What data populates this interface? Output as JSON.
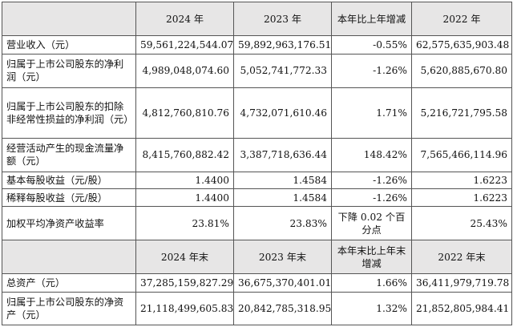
{
  "header": {
    "c2024": "2024 年",
    "c2023": "2023 年",
    "change": "本年比上年增减",
    "c2022": "2022 年"
  },
  "rows": [
    {
      "label": "营业收入（元）",
      "v2024": "59,561,224,544.07",
      "v2023": "59,892,963,176.51",
      "change": "-0.55%",
      "v2022": "62,575,635,903.48"
    },
    {
      "label": "归属于上市公司股东的净利润（元）",
      "v2024": "4,989,048,074.60",
      "v2023": "5,052,741,772.33",
      "change": "-1.26%",
      "v2022": "5,620,885,670.80"
    },
    {
      "label": "归属于上市公司股东的扣除非经常性损益的净利润（元）",
      "v2024": "4,812,760,810.76",
      "v2023": "4,732,071,610.46",
      "change": "1.71%",
      "v2022": "5,216,721,795.58"
    },
    {
      "label": "经营活动产生的现金流量净额（元）",
      "v2024": "8,415,760,882.42",
      "v2023": "3,387,718,636.44",
      "change": "148.42%",
      "v2022": "7,565,466,114.96"
    },
    {
      "label": "基本每股收益（元/股）",
      "v2024": "1.4400",
      "v2023": "1.4584",
      "change": "-1.26%",
      "v2022": "1.6223"
    },
    {
      "label": "稀释每股收益（元/股）",
      "v2024": "1.4400",
      "v2023": "1.4584",
      "change": "-1.26%",
      "v2022": "1.6223"
    },
    {
      "label": "加权平均净资产收益率",
      "v2024": "23.81%",
      "v2023": "23.83%",
      "change": "下降 0.02 个百分点",
      "v2022": "25.43%"
    }
  ],
  "header2": {
    "c2024": "2024 年末",
    "c2023": "2023 年末",
    "change": "本年末比上年末增减",
    "c2022": "2022 年末"
  },
  "rows2": [
    {
      "label": "总资产（元）",
      "v2024": "37,285,159,827.29",
      "v2023": "36,675,370,401.01",
      "change": "1.66%",
      "v2022": "36,411,979,719.78"
    },
    {
      "label": "归属于上市公司股东的净资产（元）",
      "v2024": "21,118,499,605.83",
      "v2023": "20,842,785,318.95",
      "change": "1.32%",
      "v2022": "21,852,805,984.41"
    }
  ]
}
